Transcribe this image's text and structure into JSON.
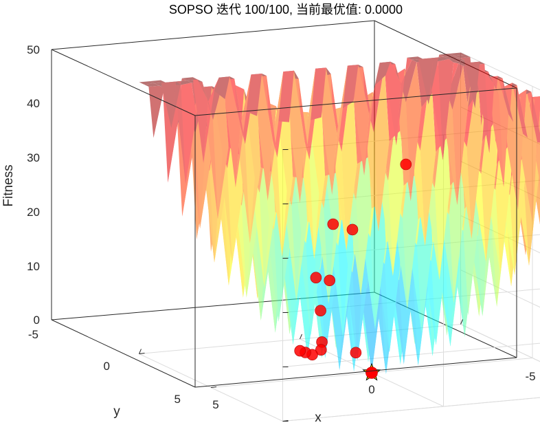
{
  "chart_data": {
    "type": "scatter",
    "title": "SOPSO 迭代 100/100, 当前最优值: 0.0000",
    "xlabel": "x",
    "ylabel": "y",
    "zlabel": "Fitness",
    "x_ticks": [
      "-5",
      "0",
      "5"
    ],
    "y_ticks": [
      "-5",
      "0",
      "5"
    ],
    "z_ticks": [
      "0",
      "10",
      "20",
      "30",
      "40",
      "50"
    ],
    "xlim": [
      -5,
      5
    ],
    "ylim": [
      -5,
      5
    ],
    "zlim": [
      0,
      50
    ],
    "grid": true,
    "surface": {
      "function": "Rastrigin",
      "colormap": "jet",
      "alpha": 0.45
    },
    "series": [
      {
        "marker": "circle",
        "color": "#ff0000",
        "points": [
          {
            "x": -1.6,
            "y": 1.2,
            "z": 36
          },
          {
            "x": 1.2,
            "y": 0.0,
            "z": 28
          },
          {
            "x": 1.0,
            "y": -0.9,
            "z": 28
          },
          {
            "x": 1.6,
            "y": 0.3,
            "z": 18
          },
          {
            "x": 1.4,
            "y": -0.2,
            "z": 18
          },
          {
            "x": 1.5,
            "y": 0.2,
            "z": 12
          },
          {
            "x": 1.1,
            "y": 1.0,
            "z": 5
          },
          {
            "x": 0.95,
            "y": 1.4,
            "z": 3
          },
          {
            "x": 1.0,
            "y": 1.9,
            "z": 1.5
          },
          {
            "x": 0.9,
            "y": 2.6,
            "z": 1
          },
          {
            "x": -0.4,
            "y": 2.0,
            "z": 1
          },
          {
            "x": 0.8,
            "y": 3.2,
            "z": 0.5
          }
        ]
      }
    ],
    "best": {
      "marker": "pentagram",
      "color": "#ffe600",
      "x": 0.0,
      "y": 0.0,
      "z": 0.0
    }
  }
}
